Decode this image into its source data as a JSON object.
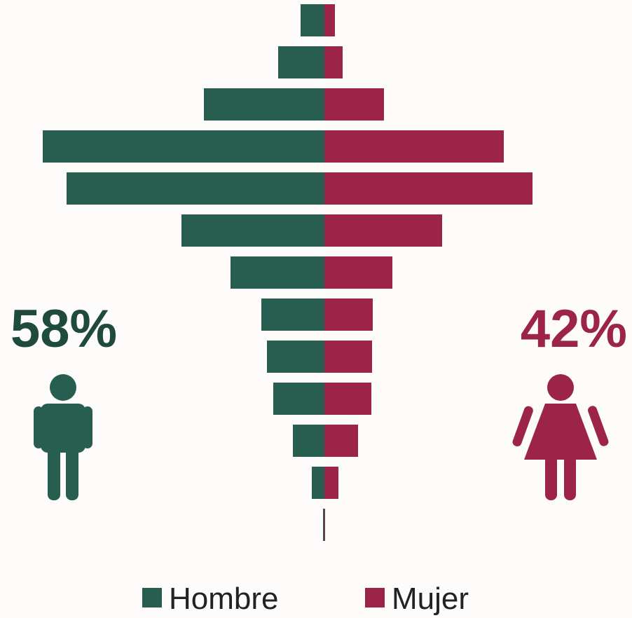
{
  "chart_data": {
    "type": "pyramid",
    "categories": [
      null,
      null,
      null,
      null,
      null,
      null,
      null,
      null,
      null,
      null,
      null,
      null,
      null
    ],
    "series": [
      {
        "name": "Hombre",
        "color": "#285e4f",
        "values": [
          34,
          66,
          172,
          402,
          368,
          204,
          134,
          90,
          82,
          73,
          45,
          18,
          2
        ]
      },
      {
        "name": "Mujer",
        "color": "#9c2449",
        "values": [
          15,
          26,
          85,
          256,
          297,
          168,
          97,
          69,
          68,
          67,
          48,
          20,
          1
        ]
      }
    ],
    "annotations": [
      "58%",
      "42%"
    ]
  }
}
